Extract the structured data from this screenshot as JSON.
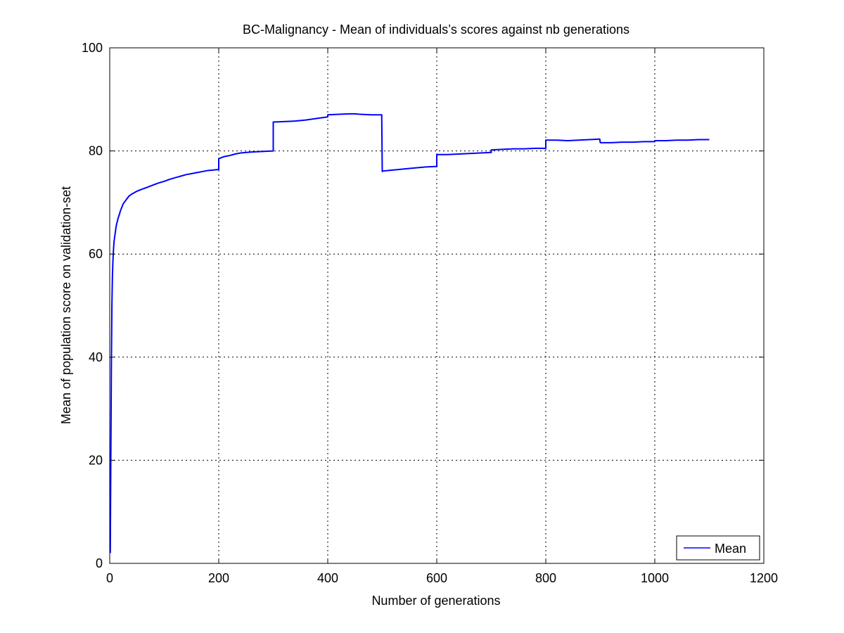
{
  "chart_data": {
    "type": "line",
    "title": "BC-Malignancy - Mean of individuals’s scores against nb generations",
    "xlabel": "Number of generations",
    "ylabel": "Mean of population score on validation-set",
    "xlim": [
      0,
      1200
    ],
    "ylim": [
      0,
      100
    ],
    "xticks": [
      0,
      200,
      400,
      600,
      800,
      1000,
      1200
    ],
    "yticks": [
      0,
      20,
      40,
      60,
      80,
      100
    ],
    "xtick_labels": [
      "0",
      "200",
      "400",
      "600",
      "800",
      "1000",
      "1200"
    ],
    "ytick_labels": [
      "0",
      "20",
      "40",
      "60",
      "80",
      "100"
    ],
    "grid": true,
    "legend": {
      "position": "bottom-right",
      "entries": [
        "Mean"
      ]
    },
    "series": [
      {
        "name": "Mean",
        "color": "#0000ff",
        "x": [
          1,
          2,
          3,
          4,
          5,
          6,
          7,
          8,
          10,
          12,
          15,
          18,
          20,
          25,
          30,
          35,
          40,
          45,
          50,
          60,
          70,
          80,
          90,
          100,
          110,
          120,
          130,
          140,
          150,
          160,
          170,
          180,
          190,
          200,
          200,
          210,
          220,
          230,
          240,
          260,
          280,
          300,
          300,
          320,
          340,
          360,
          380,
          400,
          400,
          420,
          440,
          450,
          460,
          480,
          499,
          500,
          501,
          510,
          520,
          540,
          560,
          580,
          600,
          600,
          620,
          640,
          660,
          680,
          700,
          700,
          720,
          740,
          760,
          780,
          800,
          800,
          820,
          840,
          860,
          880,
          899,
          900,
          901,
          920,
          940,
          960,
          980,
          1000,
          1000,
          1020,
          1040,
          1060,
          1080,
          1100
        ],
        "y": [
          2,
          20,
          38,
          50,
          56,
          59,
          61,
          62.5,
          64,
          65.5,
          66.8,
          67.8,
          68.5,
          69.8,
          70.5,
          71.2,
          71.6,
          71.9,
          72.2,
          72.6,
          73.0,
          73.4,
          73.8,
          74.1,
          74.5,
          74.8,
          75.1,
          75.4,
          75.6,
          75.8,
          76.0,
          76.2,
          76.3,
          76.4,
          78.5,
          78.9,
          79.1,
          79.4,
          79.6,
          79.8,
          79.9,
          80.0,
          85.6,
          85.7,
          85.8,
          86.0,
          86.3,
          86.6,
          87.0,
          87.1,
          87.2,
          87.2,
          87.1,
          87.0,
          87.0,
          76.0,
          76.1,
          76.2,
          76.3,
          76.5,
          76.7,
          76.9,
          77.0,
          79.3,
          79.3,
          79.4,
          79.5,
          79.6,
          79.7,
          80.2,
          80.3,
          80.4,
          80.4,
          80.5,
          80.5,
          82.1,
          82.1,
          82.0,
          82.1,
          82.2,
          82.3,
          81.6,
          81.6,
          81.6,
          81.7,
          81.7,
          81.8,
          81.8,
          82.0,
          82.0,
          82.1,
          82.1,
          82.2,
          82.2
        ]
      }
    ]
  }
}
